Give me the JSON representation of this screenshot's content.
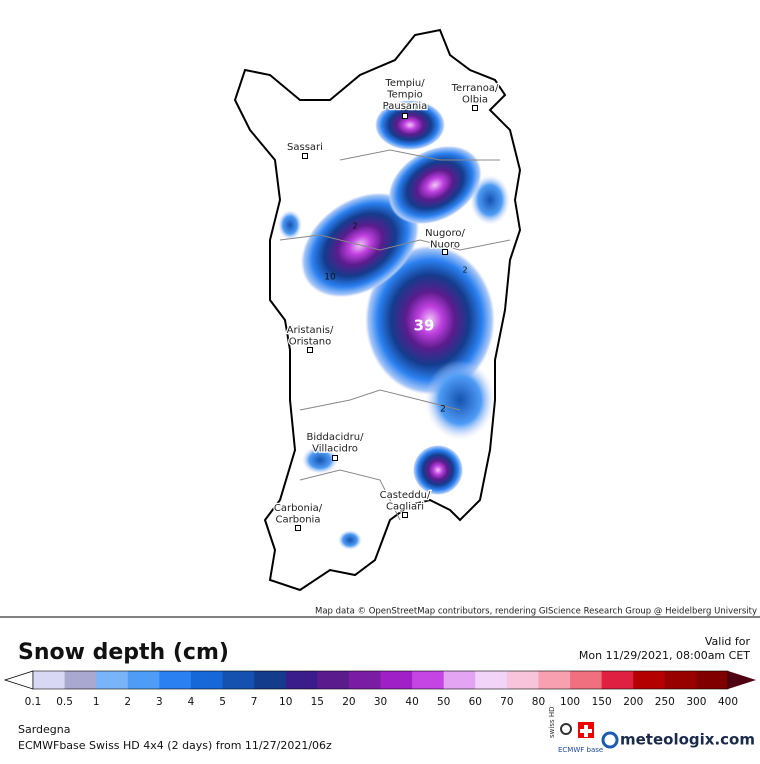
{
  "map": {
    "cities": [
      {
        "lines": [
          "Tempiu/",
          "Tempio",
          "Pausania"
        ]
      },
      {
        "lines": [
          "Terranoa/",
          "Olbia"
        ]
      },
      {
        "lines": [
          "Sassari"
        ]
      },
      {
        "lines": [
          "Nugoro/",
          "Nuoro"
        ]
      },
      {
        "lines": [
          "Aristanis/",
          "Oristano"
        ]
      },
      {
        "lines": [
          "Biddacidru/",
          "Villacidro"
        ]
      },
      {
        "lines": [
          "Casteddu/",
          "Cagliari"
        ]
      },
      {
        "lines": [
          "Carbonia/",
          "Carbonia"
        ]
      }
    ],
    "annotations": [
      "39",
      "2",
      "10",
      "2",
      "2"
    ],
    "attribution": "Map data © OpenStreetMap contributors, rendering GIScience Research Group @ Heidelberg University"
  },
  "legend": {
    "title": "Snow depth (cm)",
    "valid_label": "Valid for",
    "valid_time": "Mon 11/29/2021, 08:00am CET",
    "ticks": [
      0.1,
      0.5,
      1,
      2,
      3,
      4,
      5,
      7,
      10,
      15,
      20,
      30,
      40,
      50,
      60,
      70,
      80,
      100,
      150,
      200,
      250,
      300,
      400
    ],
    "colors": [
      "#d8d8f4",
      "#a8a8d0",
      "#7ab4f8",
      "#4e9cf5",
      "#2a80f0",
      "#1668d8",
      "#1552b0",
      "#143c8c",
      "#3a1c8a",
      "#5a1c8c",
      "#7a1ca4",
      "#a020c8",
      "#c444e4",
      "#e4a4f4",
      "#f2d4f8",
      "#f8c4dc",
      "#f8a0b0",
      "#f07080",
      "#e02040",
      "#b40000",
      "#980000",
      "#800000"
    ],
    "over_color": "#500010"
  },
  "footer": {
    "region": "Sardegna",
    "model": "ECMWFbase Swiss HD 4x4 (2 days) from 11/27/2021/06z",
    "logo_swiss": "swiss HD",
    "logo_ecmwf": "ECMWF base",
    "brand": "meteologix.com"
  }
}
